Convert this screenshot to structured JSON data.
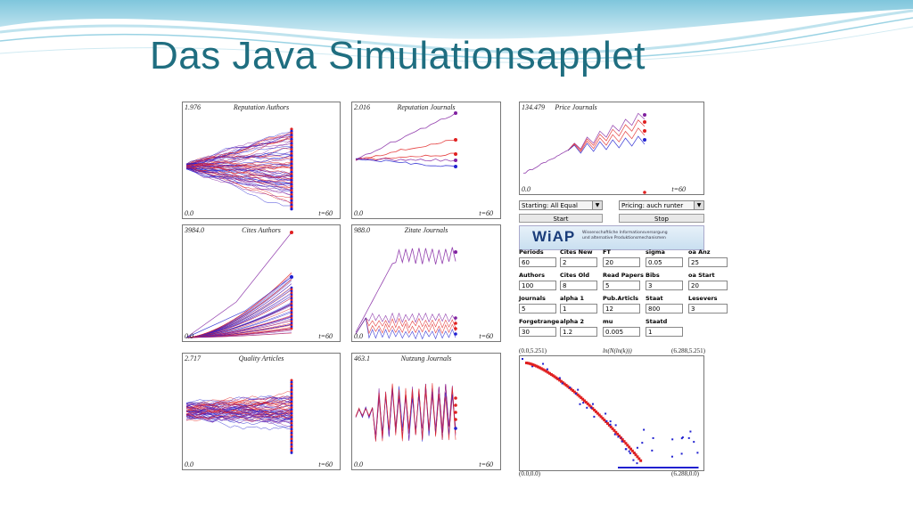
{
  "slide": {
    "title": "Das Java Simulationsapplet",
    "accent": "#1f6e80"
  },
  "panels": [
    {
      "id": "reputation-authors",
      "title": "Reputation Authors",
      "max": "1.976",
      "min": "0.0",
      "t": "t=60"
    },
    {
      "id": "reputation-journals",
      "title": "Reputation Journals",
      "max": "2.016",
      "min": "0.0",
      "t": "t=60"
    },
    {
      "id": "price-journals",
      "title": "Price Journals",
      "max": "134.479",
      "min": "0.0",
      "t": "t=60"
    },
    {
      "id": "cites-authors",
      "title": "Cites Authors",
      "max": "3984.0",
      "min": "0.0",
      "t": "t=60"
    },
    {
      "id": "zitate-journals",
      "title": "Zitate Journals",
      "max": "988.0",
      "min": "0.0",
      "t": "t=60"
    },
    {
      "id": "quality-articles",
      "title": "Quality Articles",
      "max": "2.717",
      "min": "0.0",
      "t": "t=60"
    },
    {
      "id": "nutzung-journals",
      "title": "Nutzung Journals",
      "max": "463.1",
      "min": "0.0",
      "t": "t=60"
    }
  ],
  "controls": {
    "starting": "Starting: All Equal",
    "pricing": "Pricing: auch runter",
    "start_label": "Start",
    "stop_label": "Stop"
  },
  "wiap": {
    "logo": "WiAP",
    "line1": "Wissenschaftliche Informationsversorgung",
    "line2": "und alternative Produktionsmechanismen"
  },
  "params": [
    [
      {
        "label": "Periods",
        "value": "60"
      },
      {
        "label": "Cites New",
        "value": "2"
      },
      {
        "label": "FT",
        "value": "20"
      },
      {
        "label": "sigma",
        "value": "0.05"
      },
      {
        "label": "oa Anz",
        "value": "25"
      }
    ],
    [
      {
        "label": "Authors",
        "value": "100"
      },
      {
        "label": "Cites Old",
        "value": "8"
      },
      {
        "label": "Read Papers",
        "value": "5"
      },
      {
        "label": "Bibs",
        "value": "3"
      },
      {
        "label": "oa Start",
        "value": "20"
      }
    ],
    [
      {
        "label": "Journals",
        "value": "5"
      },
      {
        "label": "alpha 1",
        "value": "1"
      },
      {
        "label": "Pub.Articls",
        "value": "12"
      },
      {
        "label": "Staat",
        "value": "800"
      },
      {
        "label": "Lesevers",
        "value": "3"
      }
    ],
    [
      {
        "label": "Forgetrange",
        "value": "30"
      },
      {
        "label": "alpha 2",
        "value": "1.2"
      },
      {
        "label": "mu",
        "value": "0.005"
      },
      {
        "label": "Staatd",
        "value": "1"
      }
    ]
  ],
  "distribution": {
    "title": "ln(N(ln(k)))",
    "top_left": "(0.0,5.251)",
    "top_right": "(6.288,5.251)",
    "bottom_left": "(0.0,0.0)",
    "bottom_right": "(6.288,0.0)"
  },
  "colors": {
    "red": "#e02020",
    "blue": "#2020d0",
    "purple": "#8020a0"
  }
}
